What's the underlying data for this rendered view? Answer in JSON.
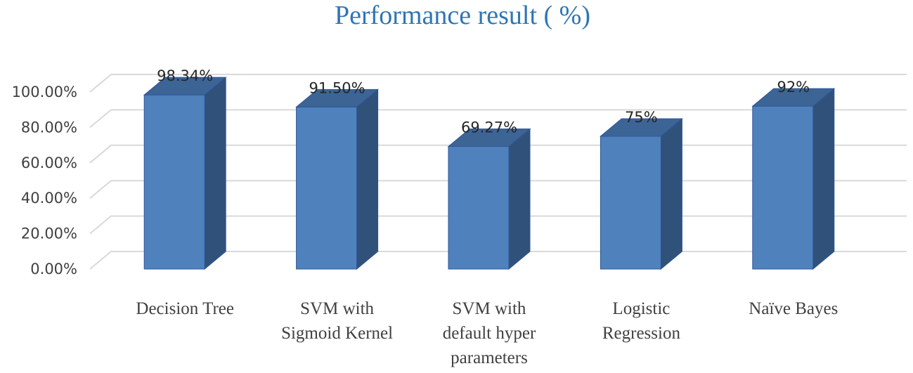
{
  "chart_data": {
    "type": "bar",
    "title": "Performance result ( %)",
    "categories": [
      [
        "Decision Tree"
      ],
      [
        "SVM with",
        "Sigmoid Kernel"
      ],
      [
        "SVM with",
        "default hyper",
        "parameters"
      ],
      [
        "Logistic",
        "Regression"
      ],
      [
        "Naïve Bayes"
      ]
    ],
    "values": [
      98.34,
      91.5,
      69.27,
      75,
      92
    ],
    "data_labels": [
      "98.34%",
      "91.50%",
      "69.27%",
      "75%",
      "92%"
    ],
    "ylim": [
      0,
      100
    ],
    "yticks": [
      0,
      20,
      40,
      60,
      80,
      100
    ],
    "ytick_labels": [
      "0.00%",
      "20.00%",
      "40.00%",
      "60.00%",
      "80.00%",
      "100.00%"
    ],
    "xlabel": "",
    "ylabel": "",
    "grid": true,
    "legend": false,
    "three_d": true,
    "colors": {
      "title": "#2E75B6",
      "bar_front": "#4F81BD",
      "bar_side": "#30527A",
      "bar_top": "#3C6596",
      "bar_edge": "#2F5597",
      "grid": "#D9D9D9"
    }
  }
}
